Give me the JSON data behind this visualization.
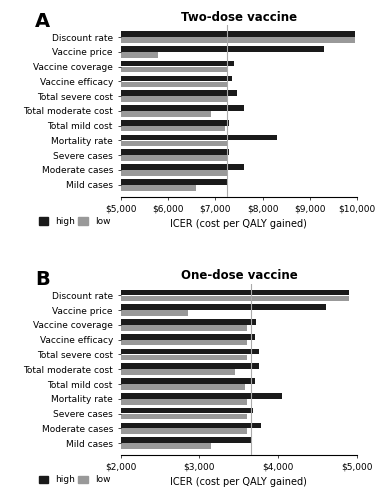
{
  "panel_A": {
    "title": "Two-dose vaccine",
    "label": "A",
    "categories": [
      "Discount rate",
      "Vaccine price",
      "Vaccine coverage",
      "Vaccine efficacy",
      "Total severe cost",
      "Total moderate cost",
      "Total mild cost",
      "Mortality rate",
      "Severe cases",
      "Moderate cases",
      "Mild cases"
    ],
    "base": 7250,
    "high_values": [
      9950,
      9300,
      7400,
      7350,
      7450,
      7600,
      7300,
      8300,
      7300,
      7600,
      7250
    ],
    "low_values": [
      9950,
      5800,
      7250,
      7250,
      7250,
      6900,
      7200,
      7250,
      7250,
      7250,
      6600
    ],
    "xlim": [
      5000,
      10000
    ],
    "xticks": [
      5000,
      6000,
      7000,
      8000,
      9000,
      10000
    ],
    "xticklabels": [
      "$5,000",
      "$6,000",
      "$7,000",
      "$8,000",
      "$9,000",
      "$10,000"
    ],
    "xlabel": "ICER (cost per QALY gained)"
  },
  "panel_B": {
    "title": "One-dose vaccine",
    "label": "B",
    "categories": [
      "Discount rate",
      "Vaccine price",
      "Vaccine coverage",
      "Vaccine efficacy",
      "Total severe cost",
      "Total moderate cost",
      "Total mild cost",
      "Mortality rate",
      "Severe cases",
      "Moderate cases",
      "Mild cases"
    ],
    "base": 3650,
    "high_values": [
      4900,
      4600,
      3720,
      3700,
      3750,
      3750,
      3700,
      4050,
      3680,
      3780,
      3650
    ],
    "low_values": [
      4900,
      2850,
      3600,
      3600,
      3600,
      3450,
      3580,
      3600,
      3600,
      3600,
      3150
    ],
    "xlim": [
      2000,
      5000
    ],
    "xticks": [
      2000,
      3000,
      4000,
      5000
    ],
    "xticklabels": [
      "$2,000",
      "$3,000",
      "$4,000",
      "$5,000"
    ],
    "xlabel": "ICER (cost per QALY gained)"
  },
  "high_color": "#1a1a1a",
  "low_color": "#999999",
  "bg_color": "#ffffff",
  "legend_high": "high",
  "legend_low": "low"
}
